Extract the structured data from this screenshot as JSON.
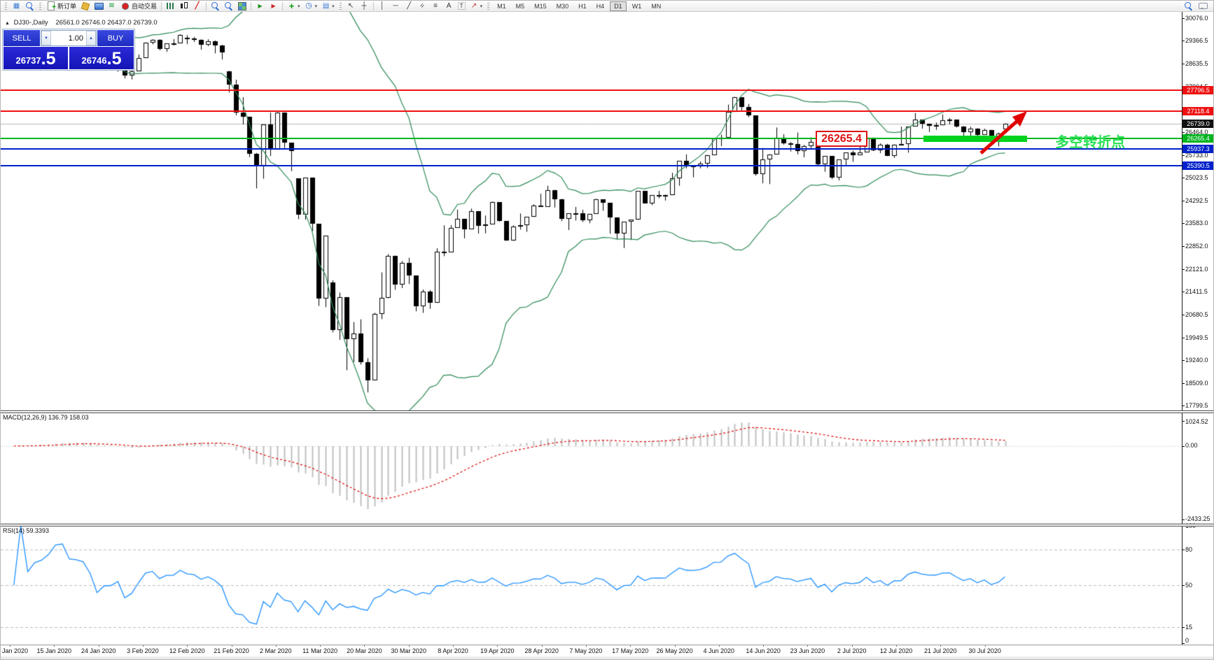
{
  "toolbar": {
    "items": [
      {
        "t": "grip"
      },
      {
        "n": "new-chart-icon",
        "g": "win"
      },
      {
        "n": "chart-preview-icon",
        "g": "magpage"
      },
      {
        "t": "grip"
      },
      {
        "n": "new-order-button",
        "g": "docplus",
        "label": "新订单"
      },
      {
        "n": "metaeditor-icon",
        "g": "cube"
      },
      {
        "n": "terminal-icon",
        "g": "monitor"
      },
      {
        "n": "signals-icon",
        "g": "waves"
      },
      {
        "n": "autotrading-button",
        "g": "rec",
        "label": "自动交易"
      },
      {
        "t": "sep"
      },
      {
        "n": "bar-chart-icon",
        "g": "bars"
      },
      {
        "n": "candlestick-chart-icon",
        "g": "candle"
      },
      {
        "n": "line-chart-icon",
        "g": "linec"
      },
      {
        "t": "sep"
      },
      {
        "n": "zoom-in-icon",
        "g": "magplus"
      },
      {
        "n": "zoom-out-icon",
        "g": "magminus"
      },
      {
        "n": "tile-windows-icon",
        "g": "grid"
      },
      {
        "t": "sep"
      },
      {
        "n": "chart-shift-icon",
        "g": "playaxis"
      },
      {
        "n": "auto-scroll-icon",
        "g": "scrollaxis"
      },
      {
        "t": "sep"
      },
      {
        "n": "indicators-button",
        "g": "indplus",
        "dd": 1
      },
      {
        "n": "periods-button",
        "g": "clock",
        "dd": 1
      },
      {
        "n": "templates-button",
        "g": "tpl",
        "dd": 1
      },
      {
        "t": "grip"
      },
      {
        "n": "cursor-icon",
        "g": "cursor"
      },
      {
        "n": "crosshair-icon",
        "g": "cross"
      },
      {
        "t": "sep"
      },
      {
        "n": "vertical-line-icon",
        "g": "vline"
      },
      {
        "n": "horizontal-line-icon",
        "g": "hline"
      },
      {
        "n": "trendline-icon",
        "g": "trend"
      },
      {
        "n": "equidistant-channel-icon",
        "g": "chan"
      },
      {
        "n": "fibonacci-icon",
        "g": "fibo"
      },
      {
        "n": "text-icon",
        "g": "tA"
      },
      {
        "n": "text-label-icon",
        "g": "tT"
      },
      {
        "n": "arrows-icon",
        "g": "arrows",
        "dd": 1
      },
      {
        "t": "grip"
      }
    ],
    "timeframes": [
      "M1",
      "M5",
      "M15",
      "M30",
      "H1",
      "H4",
      "D1",
      "W1",
      "MN"
    ],
    "selected_timeframe": "D1"
  },
  "chart": {
    "title": {
      "symbol_period": "DJ30-,Daily",
      "ohlc": "26561.0 26746.0 26437.0 26739.0"
    },
    "trade_panel": {
      "sell_label": "SELL",
      "buy_label": "BUY",
      "volume": "1.00",
      "sell_price_int": "26737",
      "sell_price_frac": ".5",
      "buy_price_int": "26746",
      "buy_price_frac": ".5"
    },
    "price_lines": [
      {
        "price": 27796.5,
        "label": "27796.5",
        "color": "#ee1111"
      },
      {
        "price": 27118.4,
        "label": "27118.4",
        "color": "#ee1111"
      },
      {
        "price": 26265.4,
        "label": "26265.4",
        "color": "#00b41e"
      },
      {
        "price": 25937.3,
        "label": "25937.3",
        "color": "#0020cc"
      },
      {
        "price": 25390.5,
        "label": "25390.5",
        "color": "#0020cc"
      }
    ],
    "bid": {
      "price": 26739.0,
      "label": "26739.0"
    },
    "annotations": {
      "price_box": "26265.4",
      "turning_point_text": "多空转折点"
    }
  },
  "chart_data": {
    "type": "candlestick",
    "symbol": "DJ30",
    "period": "Daily",
    "title": "DJ30-,Daily",
    "y_ticks": [
      "30076.0",
      "29366.5",
      "28635.5",
      "27904.5",
      "27173.5",
      "26464.0",
      "25733.0",
      "25023.5",
      "24292.5",
      "23583.0",
      "22852.0",
      "22121.0",
      "21411.5",
      "20680.5",
      "19949.5",
      "19240.0",
      "18509.0",
      "17799.5"
    ],
    "x_labels": [
      "Jan 2020",
      "15 Jan 2020",
      "24 Jan 2020",
      "3 Feb 2020",
      "12 Feb 2020",
      "21 Feb 2020",
      "2 Mar 2020",
      "11 Mar 2020",
      "20 Mar 2020",
      "30 Mar 2020",
      "8 Apr 2020",
      "19 Apr 2020",
      "28 Apr 2020",
      "7 May 2020",
      "17 May 2020",
      "26 May 2020",
      "4 Jun 2020",
      "14 Jun 2020",
      "23 Jun 2020",
      "2 Jul 2020",
      "12 Jul 2020",
      "21 Jul 2020",
      "30 Jul 2020"
    ],
    "candles": [
      [
        28639,
        28866,
        28522,
        28745
      ],
      [
        28745,
        29009,
        28700,
        28957
      ],
      [
        28957,
        29009,
        28766,
        28824
      ],
      [
        28824,
        28909,
        28740,
        28907
      ],
      [
        28907,
        29054,
        28842,
        28939
      ],
      [
        28939,
        29127,
        28897,
        29030
      ],
      [
        29030,
        29300,
        29000,
        29297
      ],
      [
        29297,
        29389,
        29232,
        29348
      ],
      [
        29348,
        29349,
        29135,
        29196
      ],
      [
        29196,
        29320,
        29152,
        29186
      ],
      [
        29186,
        29189,
        28966,
        29160
      ],
      [
        29160,
        29230,
        28843,
        28990
      ],
      [
        28990,
        28999,
        28440,
        28535
      ],
      [
        28535,
        28790,
        28478,
        28723
      ],
      [
        28723,
        28892,
        28582,
        28734
      ],
      [
        28734,
        28864,
        28380,
        28859
      ],
      [
        28859,
        28874,
        28169,
        28256
      ],
      [
        28256,
        28501,
        28135,
        28399
      ],
      [
        28399,
        28924,
        28399,
        28807
      ],
      [
        28807,
        29308,
        28807,
        29290
      ],
      [
        29290,
        29408,
        29246,
        29379
      ],
      [
        29379,
        29408,
        29056,
        29102
      ],
      [
        29102,
        29278,
        29008,
        29276
      ],
      [
        29276,
        29415,
        29210,
        29276
      ],
      [
        29276,
        29568,
        29276,
        29551
      ],
      [
        29451,
        29535,
        29252,
        29423
      ],
      [
        29423,
        29481,
        29322,
        29398
      ],
      [
        29398,
        29404,
        29076,
        29232
      ],
      [
        29232,
        29409,
        29189,
        29348
      ],
      [
        29348,
        29368,
        28959,
        29220
      ],
      [
        29220,
        29230,
        28766,
        28992
      ],
      [
        28402,
        28402,
        27722,
        27961
      ],
      [
        27961,
        28126,
        26998,
        27081
      ],
      [
        27081,
        27570,
        26706,
        26958
      ],
      [
        26958,
        26958,
        25673,
        25767
      ],
      [
        25767,
        25804,
        24681,
        25409
      ],
      [
        25409,
        26703,
        24988,
        26703
      ],
      [
        26703,
        27085,
        25707,
        25917
      ],
      [
        25917,
        27102,
        25917,
        27090
      ],
      [
        27090,
        27090,
        25944,
        26121
      ],
      [
        26121,
        26121,
        25227,
        25865
      ],
      [
        24992,
        24992,
        23707,
        23851
      ],
      [
        23851,
        25020,
        23690,
        25018
      ],
      [
        25018,
        25018,
        23328,
        23553
      ],
      [
        23553,
        23553,
        20957,
        21200
      ],
      [
        21200,
        23189,
        20918,
        23186
      ],
      [
        21693,
        21768,
        20116,
        20189
      ],
      [
        20189,
        21379,
        19882,
        21237
      ],
      [
        21237,
        21237,
        18917,
        19899
      ],
      [
        19899,
        20442,
        19177,
        20087
      ],
      [
        20087,
        20531,
        19094,
        19174
      ],
      [
        19174,
        19297,
        18214,
        18592
      ],
      [
        18592,
        20738,
        18592,
        20705
      ],
      [
        20705,
        22020,
        20538,
        21201
      ],
      [
        21201,
        22595,
        21201,
        22552
      ],
      [
        22552,
        22552,
        21469,
        21637
      ],
      [
        21637,
        22378,
        21522,
        22327
      ],
      [
        22327,
        22483,
        21653,
        21917
      ],
      [
        21917,
        21917,
        20784,
        20944
      ],
      [
        20944,
        21477,
        20735,
        21413
      ],
      [
        21413,
        21457,
        20863,
        21053
      ],
      [
        21053,
        22783,
        21053,
        22680
      ],
      [
        22680,
        23512,
        22531,
        22654
      ],
      [
        22654,
        23514,
        22654,
        23434
      ],
      [
        23434,
        24009,
        23430,
        23719
      ],
      [
        23719,
        23719,
        23096,
        23391
      ],
      [
        23391,
        24041,
        23391,
        23950
      ],
      [
        23950,
        23950,
        23248,
        23504
      ],
      [
        23504,
        23819,
        23254,
        23538
      ],
      [
        23538,
        24264,
        23538,
        24242
      ],
      [
        24242,
        24242,
        23629,
        23650
      ],
      [
        23650,
        23650,
        23018,
        23019
      ],
      [
        23019,
        23514,
        23019,
        23476
      ],
      [
        23476,
        23885,
        23376,
        23515
      ],
      [
        23515,
        23775,
        23305,
        23775
      ],
      [
        23775,
        24180,
        23775,
        24134
      ],
      [
        24134,
        24512,
        24101,
        24102
      ],
      [
        24102,
        24765,
        24102,
        24634
      ],
      [
        24634,
        24634,
        24075,
        24346
      ],
      [
        24346,
        24346,
        23645,
        23724
      ],
      [
        23724,
        23884,
        23361,
        23884
      ],
      [
        23884,
        24094,
        23664,
        23883
      ],
      [
        23883,
        24004,
        23616,
        23665
      ],
      [
        23665,
        23876,
        23576,
        23876
      ],
      [
        23876,
        24349,
        23876,
        24331
      ],
      [
        24331,
        24332,
        23972,
        24222
      ],
      [
        24222,
        24222,
        23247,
        23765
      ],
      [
        23765,
        23765,
        23069,
        23248
      ],
      [
        23248,
        23626,
        22790,
        23625
      ],
      [
        23625,
        23687,
        23047,
        23685
      ],
      [
        23685,
        24602,
        23685,
        24597
      ],
      [
        24597,
        24597,
        24206,
        24207
      ],
      [
        24207,
        24466,
        24150,
        24466
      ],
      [
        24466,
        24600,
        24365,
        24474
      ],
      [
        24474,
        24481,
        24294,
        24465
      ],
      [
        24465,
        25176,
        24465,
        24995
      ],
      [
        24995,
        25549,
        24766,
        25548
      ],
      [
        25548,
        25758,
        25316,
        25401
      ],
      [
        25401,
        25401,
        25031,
        25383
      ],
      [
        25383,
        25536,
        25316,
        25475
      ],
      [
        25475,
        25743,
        25324,
        25743
      ],
      [
        25743,
        26270,
        25743,
        26270
      ],
      [
        26270,
        26384,
        26022,
        26282
      ],
      [
        26282,
        27338,
        26282,
        27111
      ],
      [
        27111,
        27581,
        27111,
        27572
      ],
      [
        27572,
        27572,
        27151,
        27272
      ],
      [
        27272,
        27355,
        26938,
        26990
      ],
      [
        26990,
        26990,
        25082,
        25128
      ],
      [
        25128,
        25965,
        24843,
        25606
      ],
      [
        25606,
        25764,
        24817,
        25763
      ],
      [
        25763,
        26611,
        25763,
        26290
      ],
      [
        26290,
        26400,
        26068,
        26120
      ],
      [
        26120,
        26154,
        25848,
        26080
      ],
      [
        26080,
        26451,
        25759,
        25871
      ],
      [
        25871,
        26059,
        25667,
        26025
      ],
      [
        26025,
        26294,
        25957,
        26156
      ],
      [
        26156,
        26156,
        25376,
        25446
      ],
      [
        25446,
        25707,
        25209,
        25706
      ],
      [
        25706,
        25706,
        24971,
        25016
      ],
      [
        25016,
        25596,
        24935,
        25596
      ],
      [
        25596,
        25814,
        25405,
        25813
      ],
      [
        25813,
        25880,
        25523,
        25735
      ],
      [
        25735,
        26204,
        25735,
        25827
      ],
      [
        25827,
        26289,
        25827,
        26287
      ],
      [
        26287,
        26287,
        25864,
        25890
      ],
      [
        25890,
        26109,
        25798,
        26067
      ],
      [
        26067,
        26094,
        25704,
        25706
      ],
      [
        25706,
        26075,
        25650,
        26075
      ],
      [
        26075,
        26639,
        26044,
        26085
      ],
      [
        26085,
        26643,
        25813,
        26643
      ],
      [
        26643,
        27071,
        26643,
        26870
      ],
      [
        26870,
        26870,
        26573,
        26735
      ],
      [
        26735,
        26735,
        26471,
        26672
      ],
      [
        26672,
        26770,
        26535,
        26681
      ],
      [
        26681,
        27028,
        26681,
        26840
      ],
      [
        26840,
        26911,
        26713,
        26852
      ],
      [
        26852,
        26852,
        26608,
        26652
      ],
      [
        26652,
        26652,
        26310,
        26470
      ],
      [
        26470,
        26637,
        26308,
        26585
      ],
      [
        26585,
        26585,
        26247,
        26379
      ],
      [
        26379,
        26571,
        26379,
        26539
      ],
      [
        26539,
        26539,
        26116,
        26313
      ],
      [
        26313,
        26454,
        26013,
        26428
      ],
      [
        26561,
        26746,
        26437,
        26739
      ]
    ],
    "indicators": {
      "bollinger": {
        "period": 20,
        "deviation": 2,
        "color": "#2e8b57"
      },
      "macd": {
        "label": "MACD(12,26,9)",
        "values": "136.79 158.03",
        "axis": [
          "1024.52",
          "0.00",
          "-2433.25"
        ]
      },
      "rsi": {
        "label": "RSI(14)",
        "value": "59.3393",
        "levels": [
          80,
          50,
          15
        ],
        "axis": [
          "100",
          "80",
          "50",
          "15",
          "0"
        ],
        "color": "#1e90ff"
      }
    }
  }
}
